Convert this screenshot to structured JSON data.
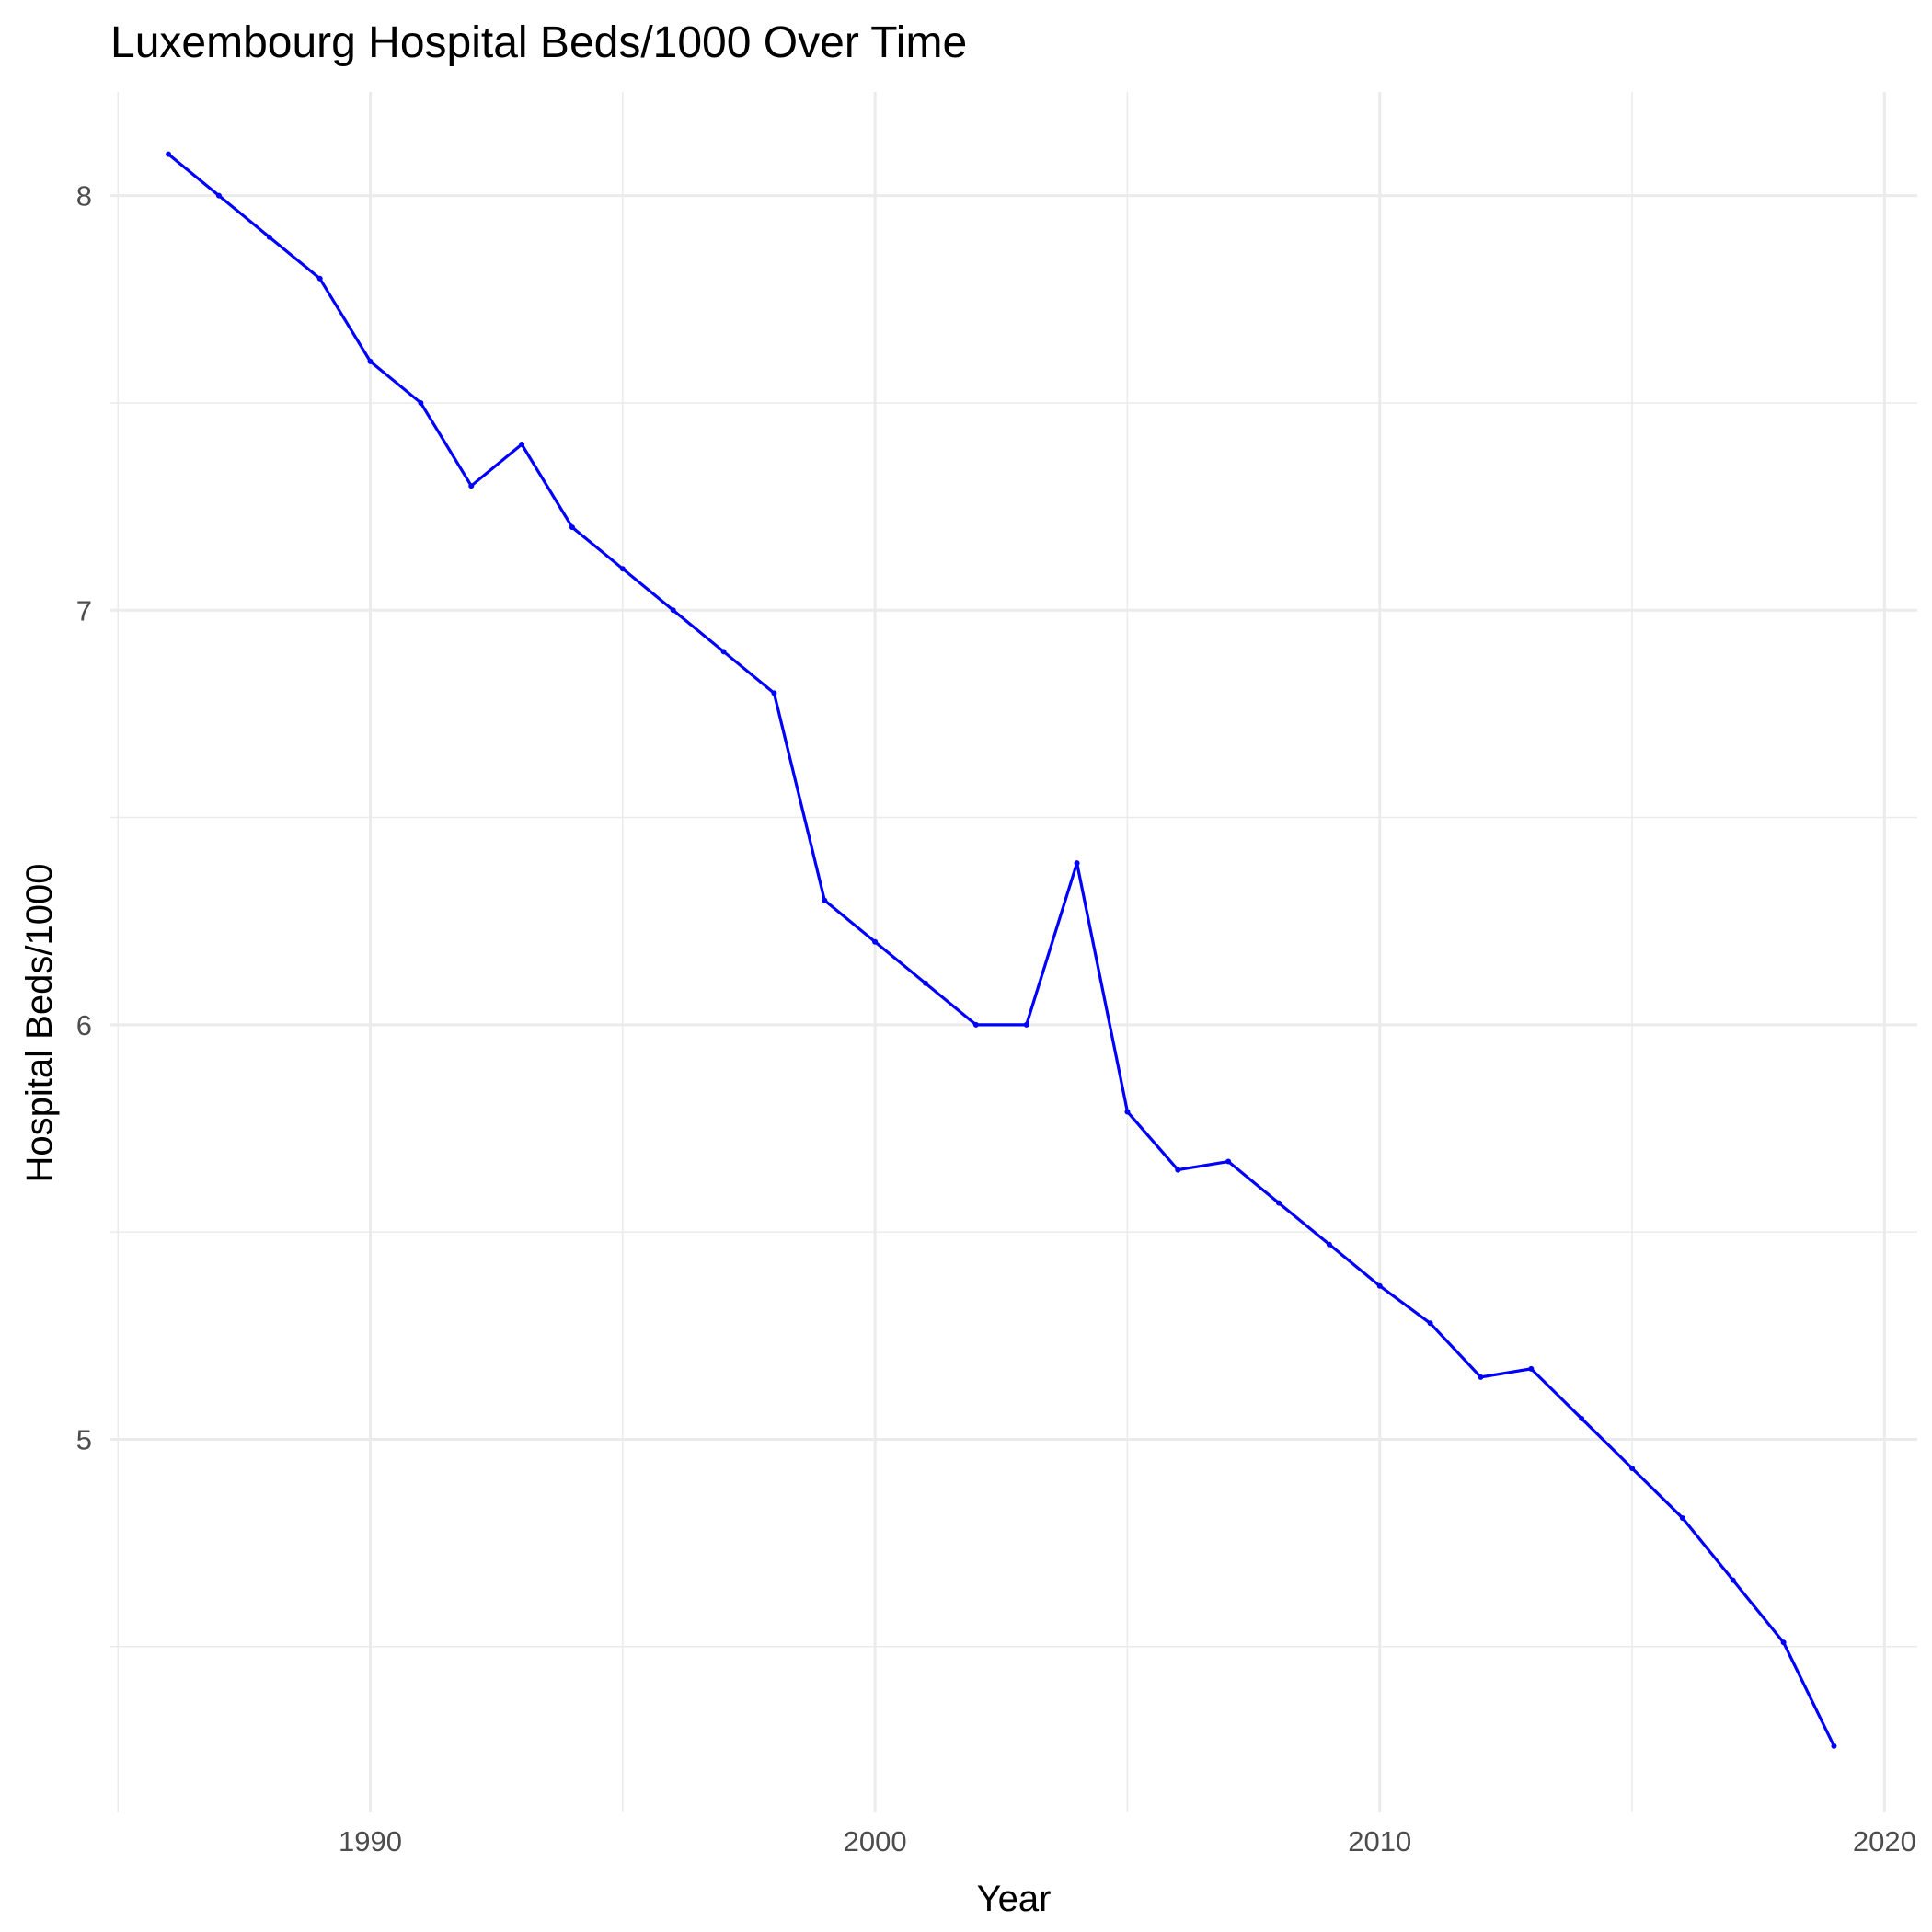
{
  "chart_data": {
    "type": "line",
    "title": "Luxembourg Hospital Beds/1000 Over Time",
    "xlabel": "Year",
    "ylabel": "Hospital Beds/1000",
    "xlim": [
      1984.85,
      2020.65
    ],
    "ylim": [
      4.1,
      8.25
    ],
    "x_major_ticks": [
      1990,
      2000,
      2010,
      2020
    ],
    "x_minor_ticks": [
      1985,
      1995,
      2005,
      2015
    ],
    "y_major_ticks": [
      5,
      6,
      7,
      8
    ],
    "y_minor_ticks": [
      4.5,
      5.5,
      6.5,
      7.5
    ],
    "x_tick_labels": [
      "1990",
      "2000",
      "2010",
      "2020"
    ],
    "y_tick_labels": [
      "5",
      "6",
      "7",
      "8"
    ],
    "grid": true,
    "legend": "none",
    "color": "#0000ff",
    "series": [
      {
        "x": [
          1986,
          1987,
          1988,
          1989,
          1990,
          1991,
          1992,
          1993,
          1994,
          1995,
          1996,
          1997,
          1998,
          1999,
          2000,
          2001,
          2002,
          2003,
          2004,
          2005,
          2006,
          2007,
          2008,
          2009,
          2010,
          2011,
          2012,
          2013,
          2014,
          2015,
          2016,
          2017,
          2018,
          2019
        ],
        "values": [
          8.1,
          8.0,
          7.9,
          7.8,
          7.6,
          7.5,
          7.3,
          7.4,
          7.2,
          7.1,
          7.0,
          6.9,
          6.8,
          6.3,
          6.2,
          6.1,
          6.0,
          6.0,
          6.39,
          5.79,
          5.65,
          5.67,
          5.57,
          5.47,
          5.37,
          5.28,
          5.15,
          5.17,
          5.05,
          4.93,
          4.81,
          4.66,
          4.51,
          4.26
        ]
      }
    ]
  }
}
